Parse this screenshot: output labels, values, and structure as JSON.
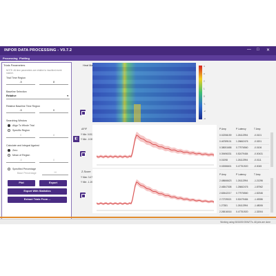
{
  "window": {
    "title": "INPOR DATA PROCESSING - V0.7.2",
    "controls": [
      "—",
      "□",
      "✕"
    ]
  },
  "menu": {
    "items": [
      "Processing",
      "Plotting"
    ]
  },
  "left_panel": {
    "title": "Trials Parameters",
    "note": "NOTE: All time parameters are relative to inscribed event marker.",
    "trial_time_region": {
      "label": "Trial Time Region",
      "start": "-5",
      "end": "8"
    },
    "baseline_selection": {
      "label": "Baseline Selection",
      "value": "Relative"
    },
    "relative_baseline": {
      "label": "Relative Baseline Time Region",
      "start": "-5",
      "end": "0"
    },
    "searching_window": {
      "label": "Searching Window",
      "options": [
        "Align To Whole Trial",
        "Specific Region"
      ],
      "selected": 0,
      "start": "0",
      "end": "8"
    },
    "calculate_integral": {
      "label": "Calculate and Integral Against",
      "options": [
        "Zero",
        "Mean of Region"
      ],
      "selected": 0,
      "start": "-5",
      "end": "0"
    },
    "specified_percentage": {
      "label": "Specified Percentage",
      "sub_label": "Base Percentage",
      "value": "10"
    },
    "buttons": {
      "plot": "Plot",
      "export": "Export",
      "export_stats": "Export With Statistics",
      "extract": "Extract Trials From ..."
    }
  },
  "side_button_icon": "panel-toggle-icon",
  "heatmap": {
    "label": "Heat Map",
    "colorbar_ticks": [
      "4",
      "3",
      "2",
      "1",
      "0",
      "-1",
      "-2",
      "-3"
    ]
  },
  "plot1": {
    "label": "ΔF/F",
    "y_max_label": "Y Min:",
    "y_max": "0.0024",
    "y_min_label": "Y Min:",
    "y_min": "-0.00749"
  },
  "plot2": {
    "label": "Z-Score",
    "y_max_label": "Y Max:",
    "y_max": "3.476",
    "y_min_label": "Y Min:",
    "y_min": "-1.205"
  },
  "table1": {
    "headers": [
      "P Amp",
      "P Latency",
      "T Amp"
    ],
    "rows": [
      [
        "0.02256159",
        "1.26112994",
        "-0.0101"
      ],
      [
        "0.46789101",
        "1.26662476",
        "-0.0201"
      ],
      [
        "0.38051658",
        "0.77976560",
        "-0.0106"
      ],
      [
        "0.39496331",
        "0.52479484",
        "-0.00431"
      ],
      [
        "0.01098",
        "1.26112994",
        "-0.0111"
      ],
      [
        "0.02086601",
        "0.47751920",
        "-0.0045"
      ]
    ]
  },
  "table2": {
    "headers": [
      "P Amp",
      "P Latency",
      "T Amp"
    ],
    "rows": [
      [
        "2.48666623",
        "1.26112994",
        "-1.21296"
      ],
      [
        "2.46547308",
        "1.26662476",
        "-1.87962"
      ],
      [
        "2.82642217",
        "0.77976560",
        "-1.52346"
      ],
      [
        "2.72739021",
        "0.52479484",
        "-1.49286"
      ],
      [
        "1.27381",
        "1.26112994",
        "-1.48006"
      ],
      [
        "2.26516016",
        "0.47751920",
        "-1.32004"
      ]
    ]
  },
  "status": {
    "text": "Working using 06/16/50 05/M/77s. All jobs are done"
  }
}
